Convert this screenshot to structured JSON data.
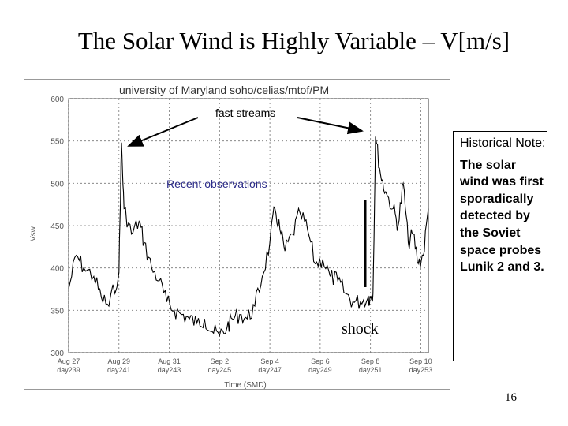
{
  "slide": {
    "title": "The Solar Wind is Highly Variable – V[m/s]",
    "page_number": "16"
  },
  "note": {
    "heading": "Historical Note",
    "colon": ":",
    "body": "The solar wind was first sporadically detected by the Soviet space probes Lunik 2 and 3."
  },
  "annotations": {
    "fast_streams": "fast streams",
    "recent_observations": "Recent observations",
    "shock": "shock"
  },
  "colors": {
    "recent_label": "#2d2d8a",
    "data_line": "#000000",
    "grid": "#777777"
  },
  "chart_data": {
    "type": "line",
    "title": "university of Maryland  soho/celias/mtof/PM",
    "xlabel": "Time (SMD)",
    "ylabel": "Vsw",
    "ylim": [
      300,
      600
    ],
    "y_ticks": [
      "600",
      "550",
      "500",
      "450",
      "400",
      "350",
      "300"
    ],
    "x_ticks": [
      {
        "date": "Aug 27",
        "doy": "day239"
      },
      {
        "date": "Aug 29",
        "doy": "day241"
      },
      {
        "date": "Aug 31",
        "doy": "day243"
      },
      {
        "date": "Sep 2",
        "doy": "day245"
      },
      {
        "date": "Sep 4",
        "doy": "day247"
      },
      {
        "date": "Sep 6",
        "doy": "day249"
      },
      {
        "date": "Sep 8",
        "doy": "day251"
      },
      {
        "date": "Sep 10",
        "doy": "day253"
      }
    ],
    "xlim": [
      239,
      253.3
    ],
    "grid": true,
    "series": [
      {
        "x": [
          239.0,
          239.3,
          239.6,
          240.0,
          240.3,
          240.6,
          241.0,
          241.1,
          241.2,
          241.5,
          241.8,
          242.0,
          242.3,
          242.6,
          242.9,
          243.2,
          243.5,
          243.8,
          244.1,
          244.4,
          244.7,
          245.0,
          245.3,
          245.5,
          245.8,
          246.1,
          246.4,
          246.7,
          247.0,
          247.2,
          247.4,
          247.6,
          247.9,
          248.2,
          248.5,
          248.8,
          249.1,
          249.4,
          249.7,
          250.0,
          250.3,
          250.6,
          250.9,
          251.0,
          251.1,
          251.2,
          251.4,
          251.6,
          251.9,
          252.1,
          252.3,
          252.5,
          252.7,
          252.9,
          253.1,
          253.3
        ],
        "values": [
          375,
          415,
          400,
          390,
          365,
          355,
          395,
          548,
          470,
          440,
          455,
          430,
          400,
          385,
          360,
          350,
          345,
          340,
          335,
          340,
          325,
          320,
          330,
          340,
          345,
          340,
          355,
          390,
          430,
          470,
          445,
          420,
          440,
          465,
          445,
          405,
          410,
          390,
          385,
          370,
          360,
          360,
          365,
          365,
          370,
          555,
          510,
          490,
          470,
          450,
          500,
          430,
          440,
          405,
          415,
          470
        ]
      }
    ]
  }
}
